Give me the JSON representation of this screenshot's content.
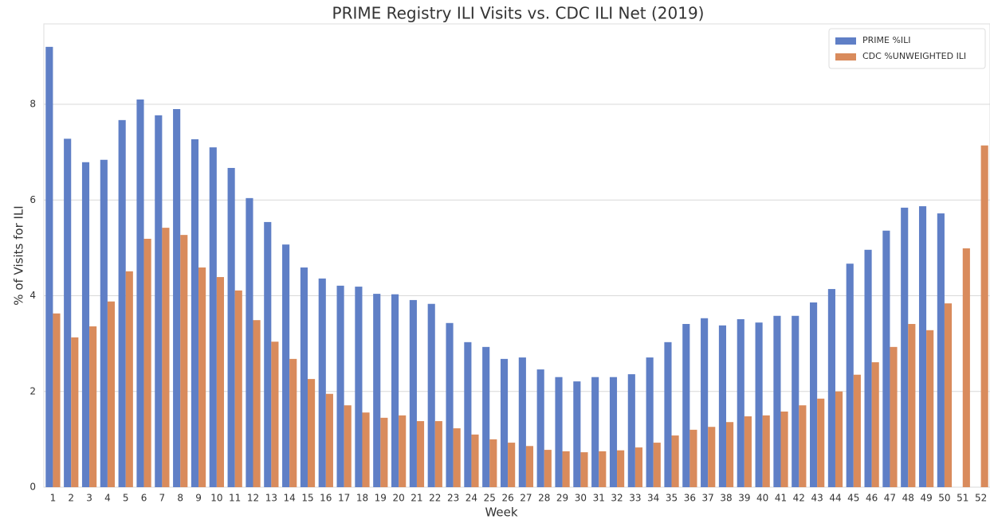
{
  "chart_data": {
    "type": "bar",
    "title": "PRIME Registry ILI Visits vs. CDC ILI Net (2019)",
    "x_label": "Week",
    "y_label": "% of Visits for ILI",
    "categories": [
      "1",
      "2",
      "3",
      "4",
      "5",
      "6",
      "7",
      "8",
      "9",
      "10",
      "11",
      "12",
      "13",
      "14",
      "15",
      "16",
      "17",
      "18",
      "19",
      "20",
      "21",
      "22",
      "23",
      "24",
      "25",
      "26",
      "27",
      "28",
      "29",
      "30",
      "31",
      "32",
      "33",
      "34",
      "35",
      "36",
      "37",
      "38",
      "39",
      "40",
      "41",
      "42",
      "43",
      "44",
      "45",
      "46",
      "47",
      "48",
      "49",
      "50",
      "51",
      "52"
    ],
    "series": [
      {
        "name": "PRIME %ILI",
        "color": "#5f7fc6",
        "values": [
          9.2,
          7.28,
          6.79,
          6.84,
          7.67,
          8.1,
          7.77,
          7.9,
          7.27,
          7.1,
          6.67,
          6.04,
          5.54,
          5.07,
          4.59,
          4.36,
          4.21,
          4.19,
          4.04,
          4.03,
          3.91,
          3.83,
          3.43,
          3.03,
          2.93,
          2.68,
          2.71,
          2.46,
          2.3,
          2.21,
          2.3,
          2.3,
          2.36,
          2.71,
          3.03,
          3.41,
          3.53,
          3.38,
          3.51,
          3.44,
          3.58,
          3.58,
          3.86,
          4.14,
          4.67,
          4.96,
          5.36,
          5.84,
          5.87,
          5.72,
          null,
          null
        ]
      },
      {
        "name": "CDC %UNWEIGHTED ILI",
        "color": "#d98b5c",
        "values": [
          3.63,
          3.13,
          3.36,
          3.88,
          4.51,
          5.19,
          5.42,
          5.27,
          4.59,
          4.39,
          4.11,
          3.49,
          3.04,
          2.68,
          2.26,
          1.95,
          1.71,
          1.56,
          1.45,
          1.5,
          1.38,
          1.38,
          1.23,
          1.1,
          1.0,
          0.93,
          0.86,
          0.78,
          0.75,
          0.73,
          0.75,
          0.77,
          0.83,
          0.93,
          1.08,
          1.2,
          1.26,
          1.36,
          1.48,
          1.5,
          1.58,
          1.71,
          1.85,
          2.0,
          2.35,
          2.61,
          2.93,
          3.41,
          3.28,
          3.84,
          4.99,
          7.14
        ]
      }
    ],
    "ylim": [
      0,
      9.68
    ],
    "yticks": [
      0,
      2,
      4,
      6,
      8
    ],
    "grid": true,
    "legend": "upper right"
  }
}
